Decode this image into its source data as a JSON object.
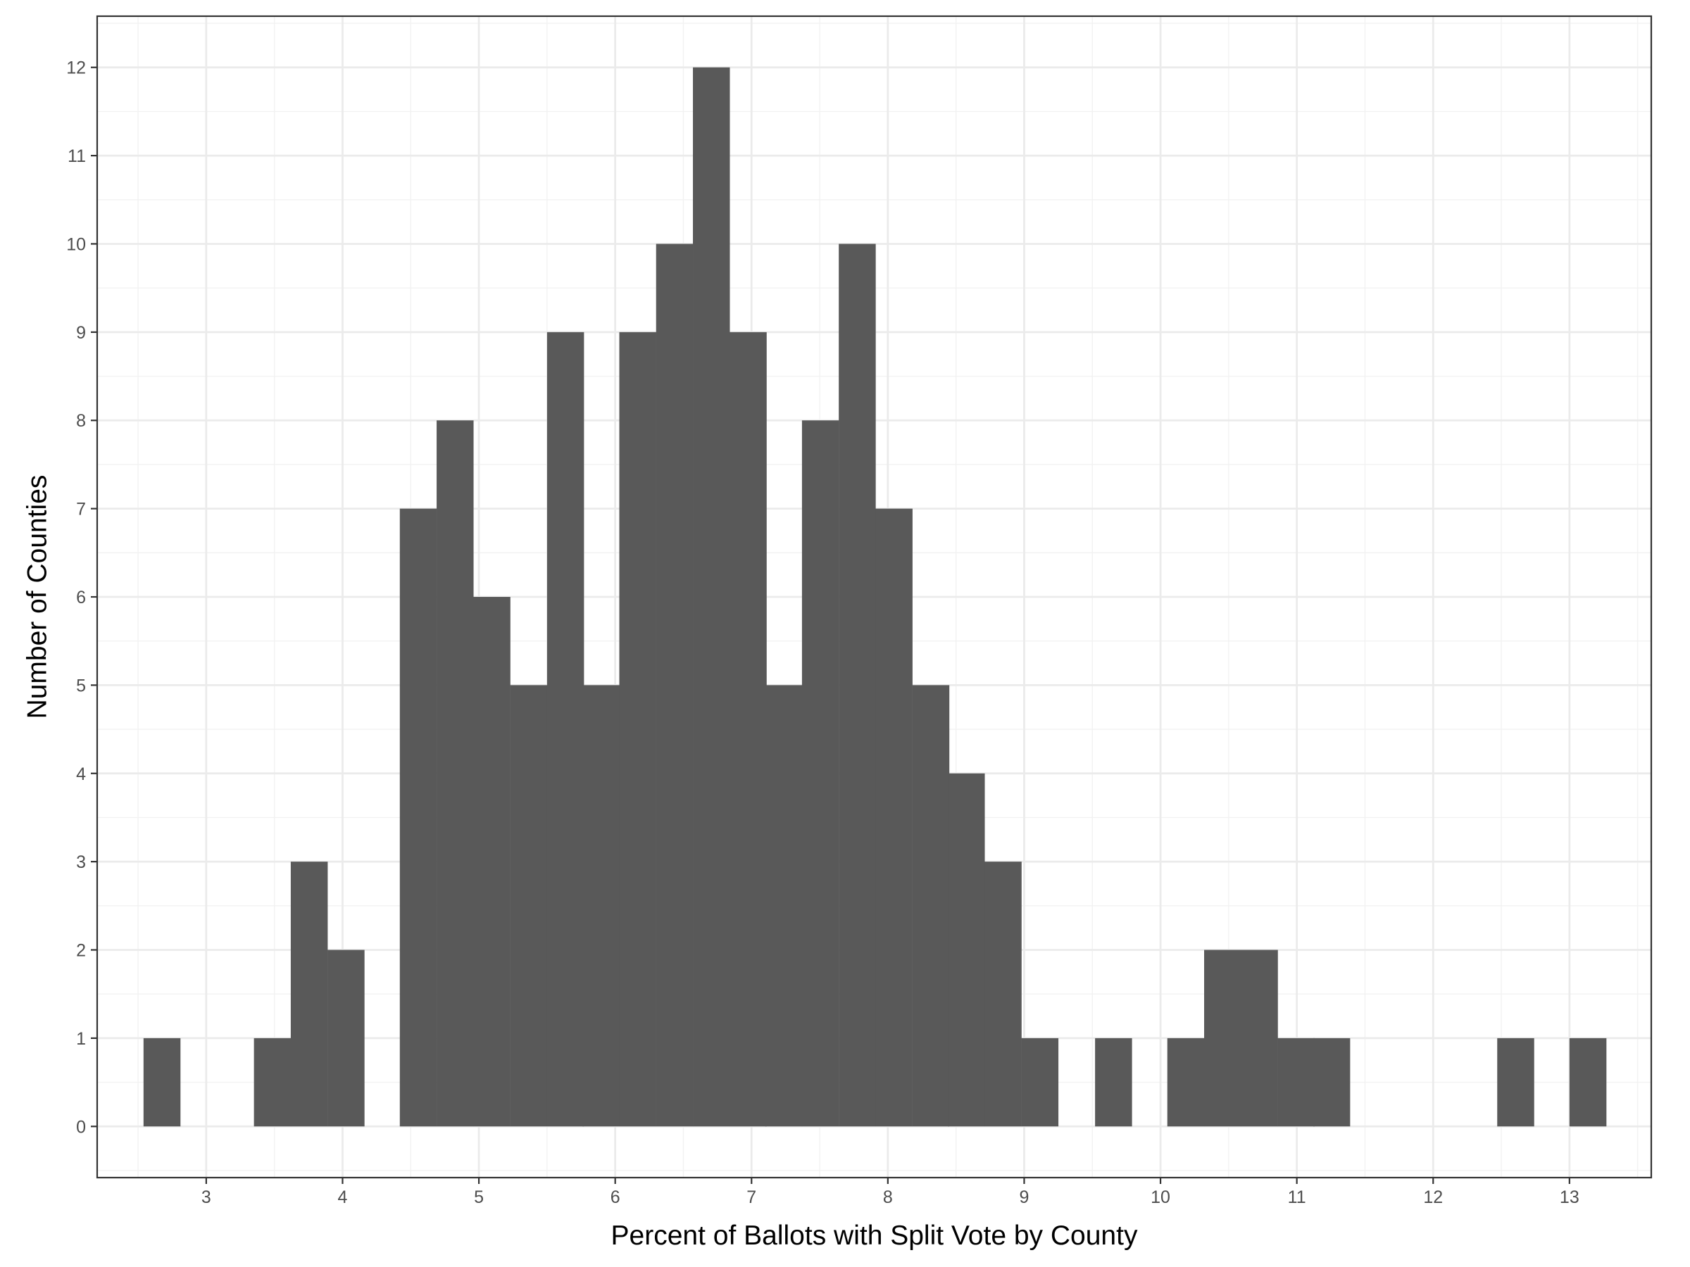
{
  "chart_data": {
    "type": "bar",
    "subtype": "histogram",
    "title": "",
    "xlabel": "Percent of Ballots with Split Vote by County",
    "ylabel": "Number of Counties",
    "xlim": [
      2.2,
      13.6
    ],
    "ylim": [
      -0.58,
      12.58
    ],
    "xticks": [
      3,
      4,
      5,
      6,
      7,
      8,
      9,
      10,
      11,
      12,
      13
    ],
    "yticks": [
      0,
      1,
      2,
      3,
      4,
      5,
      6,
      7,
      8,
      9,
      10,
      11,
      12
    ],
    "bin_width": 0.268,
    "bins": [
      {
        "x0": 2.54,
        "count": 1
      },
      {
        "x0": 3.35,
        "count": 1
      },
      {
        "x0": 3.62,
        "count": 3
      },
      {
        "x0": 3.89,
        "count": 2
      },
      {
        "x0": 4.42,
        "count": 7
      },
      {
        "x0": 4.69,
        "count": 8
      },
      {
        "x0": 4.96,
        "count": 6
      },
      {
        "x0": 5.23,
        "count": 5
      },
      {
        "x0": 5.5,
        "count": 9
      },
      {
        "x0": 5.76,
        "count": 5
      },
      {
        "x0": 6.03,
        "count": 9
      },
      {
        "x0": 6.3,
        "count": 10
      },
      {
        "x0": 6.57,
        "count": 12
      },
      {
        "x0": 6.84,
        "count": 9
      },
      {
        "x0": 7.1,
        "count": 5
      },
      {
        "x0": 7.37,
        "count": 8
      },
      {
        "x0": 7.64,
        "count": 10
      },
      {
        "x0": 7.91,
        "count": 7
      },
      {
        "x0": 8.18,
        "count": 5
      },
      {
        "x0": 8.44,
        "count": 4
      },
      {
        "x0": 8.71,
        "count": 3
      },
      {
        "x0": 8.98,
        "count": 1
      },
      {
        "x0": 9.52,
        "count": 1
      },
      {
        "x0": 10.05,
        "count": 1
      },
      {
        "x0": 10.32,
        "count": 2
      },
      {
        "x0": 10.59,
        "count": 2
      },
      {
        "x0": 10.86,
        "count": 1
      },
      {
        "x0": 11.12,
        "count": 1
      },
      {
        "x0": 12.47,
        "count": 1
      },
      {
        "x0": 13.0,
        "count": 1
      }
    ],
    "bar_color": "#595959",
    "panel_border_color": "#333333",
    "grid": true,
    "grid_major_color": "#ebebeb",
    "grid_minor_color": "#f2f2f2",
    "legend": "none"
  }
}
